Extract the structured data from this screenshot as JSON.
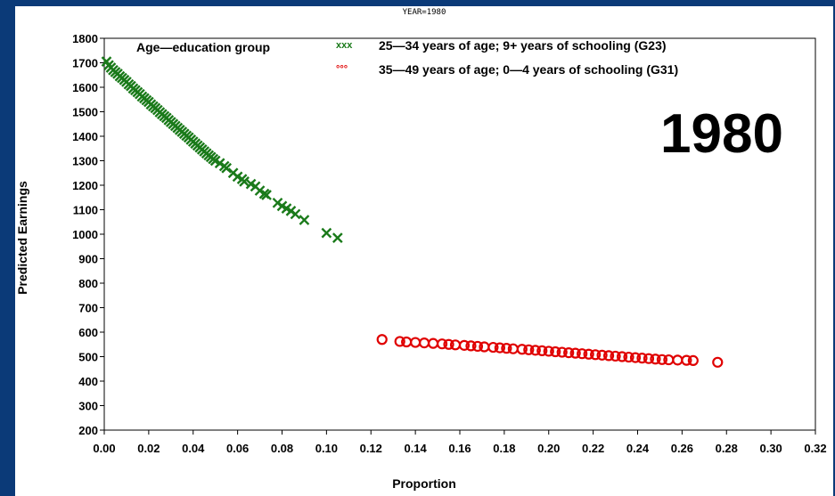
{
  "caption": "YEAR=1980",
  "overlay_label": "1980",
  "legend": {
    "title": "Age—education group",
    "entries": [
      {
        "symbol": "xxx",
        "label": "25—34 years of age; 9+  years of schooling (G23)",
        "color": "#1a7a1a"
      },
      {
        "symbol": "°°°",
        "label": "35—49 years of age; 0—4 years of schooling (G31)",
        "color": "#e00000"
      }
    ]
  },
  "chart_data": {
    "type": "scatter",
    "xlabel": "Proportion",
    "ylabel": "Predicted Earnings",
    "xlim": [
      0.0,
      0.32
    ],
    "ylim": [
      200,
      1800
    ],
    "xticks": [
      "0.00",
      "0.02",
      "0.04",
      "0.06",
      "0.08",
      "0.10",
      "0.12",
      "0.14",
      "0.16",
      "0.18",
      "0.20",
      "0.22",
      "0.24",
      "0.26",
      "0.28",
      "0.30",
      "0.32"
    ],
    "yticks": [
      "200",
      "300",
      "400",
      "500",
      "600",
      "700",
      "800",
      "900",
      "1000",
      "1100",
      "1200",
      "1300",
      "1400",
      "1500",
      "1600",
      "1700",
      "1800"
    ],
    "legend_position": "top",
    "series": [
      {
        "name": "25—34 years of age; 9+  years of schooling (G23)",
        "marker": "x",
        "color": "#1a7a1a",
        "points": [
          [
            0.001,
            1705
          ],
          [
            0.002,
            1690
          ],
          [
            0.003,
            1680
          ],
          [
            0.004,
            1670
          ],
          [
            0.005,
            1662
          ],
          [
            0.006,
            1655
          ],
          [
            0.007,
            1645
          ],
          [
            0.008,
            1638
          ],
          [
            0.009,
            1630
          ],
          [
            0.01,
            1622
          ],
          [
            0.011,
            1612
          ],
          [
            0.012,
            1605
          ],
          [
            0.013,
            1595
          ],
          [
            0.014,
            1588
          ],
          [
            0.015,
            1580
          ],
          [
            0.016,
            1572
          ],
          [
            0.017,
            1562
          ],
          [
            0.018,
            1555
          ],
          [
            0.019,
            1547
          ],
          [
            0.02,
            1540
          ],
          [
            0.021,
            1530
          ],
          [
            0.022,
            1522
          ],
          [
            0.023,
            1515
          ],
          [
            0.024,
            1507
          ],
          [
            0.025,
            1498
          ],
          [
            0.026,
            1490
          ],
          [
            0.027,
            1482
          ],
          [
            0.028,
            1475
          ],
          [
            0.029,
            1466
          ],
          [
            0.03,
            1458
          ],
          [
            0.031,
            1450
          ],
          [
            0.032,
            1442
          ],
          [
            0.033,
            1434
          ],
          [
            0.034,
            1426
          ],
          [
            0.035,
            1418
          ],
          [
            0.036,
            1410
          ],
          [
            0.037,
            1402
          ],
          [
            0.038,
            1395
          ],
          [
            0.039,
            1386
          ],
          [
            0.04,
            1378
          ],
          [
            0.041,
            1370
          ],
          [
            0.042,
            1362
          ],
          [
            0.043,
            1354
          ],
          [
            0.044,
            1346
          ],
          [
            0.045,
            1338
          ],
          [
            0.046,
            1330
          ],
          [
            0.047,
            1322
          ],
          [
            0.048,
            1315
          ],
          [
            0.049,
            1307
          ],
          [
            0.05,
            1300
          ],
          [
            0.052,
            1290
          ],
          [
            0.054,
            1278
          ],
          [
            0.055,
            1270
          ],
          [
            0.058,
            1250
          ],
          [
            0.06,
            1235
          ],
          [
            0.062,
            1225
          ],
          [
            0.063,
            1215
          ],
          [
            0.066,
            1205
          ],
          [
            0.068,
            1195
          ],
          [
            0.07,
            1178
          ],
          [
            0.072,
            1165
          ],
          [
            0.073,
            1160
          ],
          [
            0.078,
            1128
          ],
          [
            0.08,
            1115
          ],
          [
            0.082,
            1105
          ],
          [
            0.084,
            1095
          ],
          [
            0.086,
            1082
          ],
          [
            0.09,
            1058
          ],
          [
            0.1,
            1005
          ],
          [
            0.105,
            985
          ]
        ]
      },
      {
        "name": "35—49 years of age; 0—4 years of schooling (G31)",
        "marker": "o",
        "color": "#e00000",
        "points": [
          [
            0.125,
            570
          ],
          [
            0.133,
            562
          ],
          [
            0.136,
            560
          ],
          [
            0.14,
            558
          ],
          [
            0.144,
            556
          ],
          [
            0.148,
            554
          ],
          [
            0.152,
            552
          ],
          [
            0.155,
            550
          ],
          [
            0.158,
            548
          ],
          [
            0.162,
            546
          ],
          [
            0.165,
            544
          ],
          [
            0.168,
            542
          ],
          [
            0.171,
            540
          ],
          [
            0.175,
            538
          ],
          [
            0.178,
            536
          ],
          [
            0.181,
            534
          ],
          [
            0.184,
            532
          ],
          [
            0.188,
            530
          ],
          [
            0.191,
            528
          ],
          [
            0.194,
            526
          ],
          [
            0.197,
            524
          ],
          [
            0.2,
            522
          ],
          [
            0.203,
            520
          ],
          [
            0.206,
            518
          ],
          [
            0.209,
            516
          ],
          [
            0.212,
            514
          ],
          [
            0.215,
            512
          ],
          [
            0.218,
            510
          ],
          [
            0.221,
            508
          ],
          [
            0.224,
            506
          ],
          [
            0.227,
            504
          ],
          [
            0.23,
            502
          ],
          [
            0.233,
            500
          ],
          [
            0.236,
            498
          ],
          [
            0.239,
            496
          ],
          [
            0.242,
            494
          ],
          [
            0.245,
            492
          ],
          [
            0.248,
            490
          ],
          [
            0.251,
            488
          ],
          [
            0.254,
            487
          ],
          [
            0.258,
            486
          ],
          [
            0.262,
            485
          ],
          [
            0.265,
            484
          ],
          [
            0.276,
            477
          ]
        ]
      }
    ]
  }
}
